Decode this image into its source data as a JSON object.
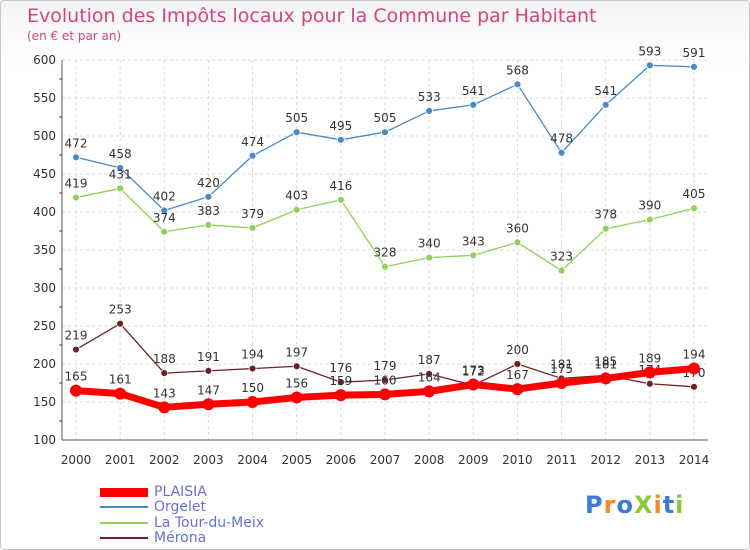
{
  "chart_data": {
    "type": "line",
    "title": "Evolution des Impôts locaux pour la Commune par Habitant",
    "subtitle": "(en € et par an)",
    "x": [
      "2000",
      "2001",
      "2002",
      "2003",
      "2004",
      "2005",
      "2006",
      "2007",
      "2008",
      "2009",
      "2010",
      "2011",
      "2012",
      "2013",
      "2014"
    ],
    "ylim": [
      100,
      600
    ],
    "yticks": [
      100,
      150,
      200,
      250,
      300,
      350,
      400,
      450,
      500,
      550,
      600
    ],
    "grid": true,
    "legend_position": "bottom-left",
    "series": [
      {
        "name": "Orgelet",
        "color": "#4a8ac8",
        "values": [
          472,
          458,
          402,
          420,
          474,
          505,
          495,
          505,
          533,
          541,
          568,
          478,
          541,
          593,
          591
        ]
      },
      {
        "name": "La Tour-du-Meix",
        "color": "#8fd15a",
        "values": [
          419,
          431,
          374,
          383,
          379,
          403,
          416,
          328,
          340,
          343,
          360,
          323,
          378,
          390,
          405
        ]
      },
      {
        "name": "Mérona",
        "color": "#6b2424",
        "values": [
          219,
          253,
          188,
          191,
          194,
          197,
          176,
          179,
          187,
          172,
          200,
          181,
          185,
          174,
          170
        ]
      },
      {
        "name": "PLAISIA",
        "color": "#ff0000",
        "values": [
          165,
          161,
          143,
          147,
          150,
          156,
          159,
          160,
          164,
          173,
          167,
          175,
          181,
          189,
          194
        ]
      }
    ]
  },
  "legend": [
    {
      "label": "PLAISIA",
      "color": "#ff0000"
    },
    {
      "label": "Orgelet",
      "color": "#4a8ac8"
    },
    {
      "label": "La Tour-du-Meix",
      "color": "#8fd15a"
    },
    {
      "label": "Mérona",
      "color": "#6b2424"
    }
  ],
  "brand": {
    "text": "ProXiti",
    "colors": [
      "#3a7bd5",
      "#f28c28",
      "#3a7bd5",
      "#8cc63f",
      "#f28c28",
      "#3a7bd5",
      "#8cc63f"
    ]
  }
}
